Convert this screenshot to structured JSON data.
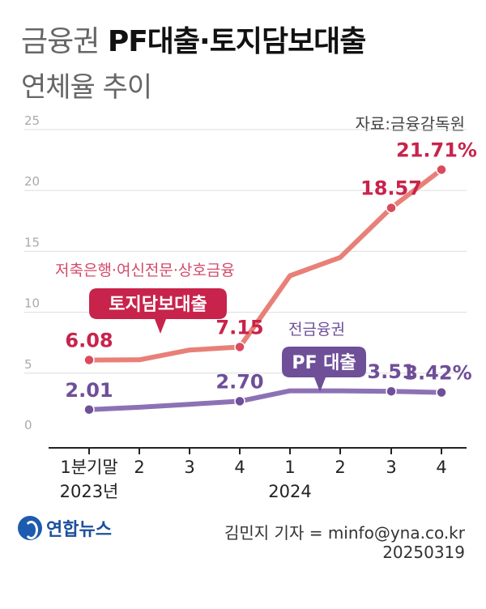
{
  "header": {
    "title_light": "금융권 ",
    "title_bold": "PF대출·토지담보대출",
    "subtitle": "연체율 추이",
    "source": "자료:금융감독원"
  },
  "colors": {
    "red_line": "#e88078",
    "red_point": "#d94a5e",
    "red_tag": "#c8234b",
    "purple": "#6e4f98",
    "grid": "#dddddd"
  },
  "chart_data": {
    "type": "line",
    "x": [
      "1분기말",
      "2",
      "3",
      "4",
      "1",
      "2",
      "3",
      "4"
    ],
    "year_labels": [
      "2023년",
      "2024"
    ],
    "ylim": [
      0,
      25
    ],
    "yticks": [
      "0",
      "5",
      "10",
      "15",
      "20",
      "25"
    ],
    "series": [
      {
        "name": "토지담보대출",
        "group": "저축은행·여신전문·상호금융",
        "values": [
          6.08,
          6.1,
          6.9,
          7.15,
          13.0,
          14.5,
          18.57,
          21.71
        ],
        "labels": [
          "6.08",
          "",
          "",
          "7.15",
          "",
          "",
          "18.57",
          "21.71%"
        ]
      },
      {
        "name": "PF 대출",
        "group": "전금융권",
        "values": [
          2.01,
          2.2,
          2.45,
          2.7,
          3.55,
          3.55,
          3.51,
          3.42
        ],
        "labels": [
          "2.01",
          "",
          "",
          "2.70",
          "",
          "",
          "3.51",
          "3.42%"
        ]
      }
    ]
  },
  "footer": {
    "logo_text": "연합뉴스",
    "credit": "김민지 기자 = minfo@yna.co.kr",
    "date": "20250319"
  }
}
